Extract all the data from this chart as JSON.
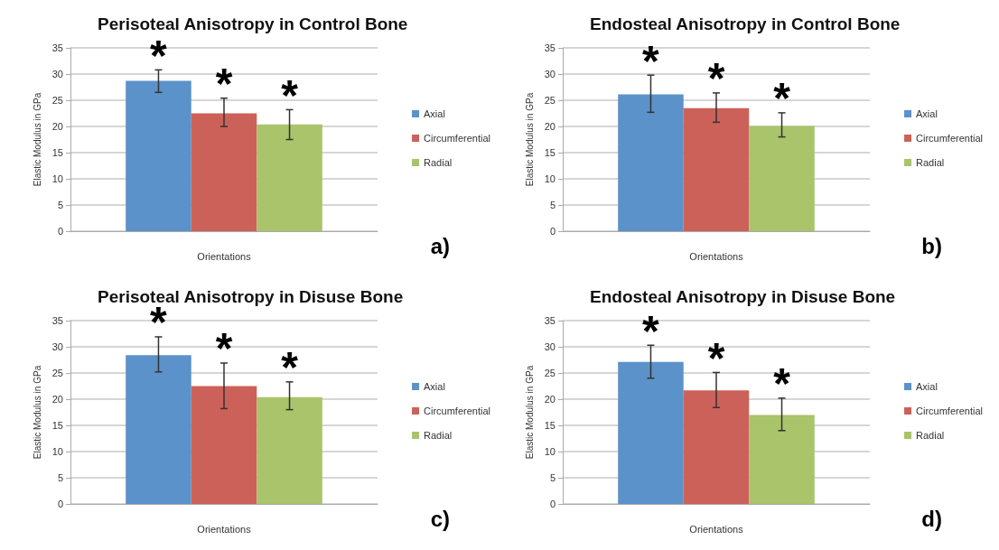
{
  "chart_data": [
    {
      "type": "bar",
      "title": "Perisoteal Anisotropy in Control Bone",
      "xlabel": "Orientations",
      "ylabel": "Elastic Modulus in GPa",
      "categories": [
        null
      ],
      "series": [
        {
          "name": "Axial",
          "color": "#5b92c9",
          "values": [
            28.7
          ],
          "errors": [
            [
              26.5,
              30.8
            ]
          ],
          "value_labels": [
            "*"
          ]
        },
        {
          "name": "Circumferential",
          "color": "#cc6159",
          "values": [
            22.5
          ],
          "errors": [
            [
              20,
              25.4
            ]
          ],
          "value_labels": [
            "*"
          ]
        },
        {
          "name": "Radial",
          "color": "#a9c46a",
          "values": [
            20.4
          ],
          "errors": [
            [
              17.5,
              23.2
            ]
          ],
          "value_labels": [
            "*"
          ]
        }
      ],
      "ylim": [
        0,
        35
      ],
      "yticks": [
        0,
        5,
        10,
        15,
        20,
        25,
        30,
        35
      ],
      "grid": "y",
      "legend": "right",
      "annotations": [
        "a)"
      ]
    },
    {
      "type": "bar",
      "title": "Endosteal Anisotropy in Control Bone",
      "xlabel": "Orientations",
      "ylabel": "Elastic Modulus in GPa",
      "categories": [
        null
      ],
      "series": [
        {
          "name": "Axial",
          "color": "#5b92c9",
          "values": [
            26.1
          ],
          "errors": [
            [
              22.7,
              29.8
            ]
          ],
          "value_labels": [
            "*"
          ]
        },
        {
          "name": "Circumferential",
          "color": "#cc6159",
          "values": [
            23.5
          ],
          "errors": [
            [
              20.8,
              26.4
            ]
          ],
          "value_labels": [
            "*"
          ]
        },
        {
          "name": "Radial",
          "color": "#a9c46a",
          "values": [
            20.1
          ],
          "errors": [
            [
              18,
              22.6
            ]
          ],
          "value_labels": [
            "*"
          ]
        }
      ],
      "ylim": [
        0,
        35
      ],
      "yticks": [
        0,
        5,
        10,
        15,
        20,
        25,
        30,
        35
      ],
      "grid": "y",
      "legend": "right",
      "annotations": [
        "b)"
      ]
    },
    {
      "type": "bar",
      "title": "Perisoteal Anisotropy in Disuse Bone",
      "xlabel": "Orientations",
      "ylabel": "Elastic Modulus in GPa",
      "categories": [
        null
      ],
      "series": [
        {
          "name": "Axial",
          "color": "#5b92c9",
          "values": [
            28.4
          ],
          "errors": [
            [
              25.2,
              31.9
            ]
          ],
          "value_labels": [
            "*"
          ]
        },
        {
          "name": "Circumferential",
          "color": "#cc6159",
          "values": [
            22.5
          ],
          "errors": [
            [
              18.2,
              26.9
            ]
          ],
          "value_labels": [
            "*"
          ]
        },
        {
          "name": "Radial",
          "color": "#a9c46a",
          "values": [
            20.4
          ],
          "errors": [
            [
              18,
              23.3
            ]
          ],
          "value_labels": [
            "*"
          ]
        }
      ],
      "ylim": [
        0,
        35
      ],
      "yticks": [
        0,
        5,
        10,
        15,
        20,
        25,
        30,
        35
      ],
      "grid": "y",
      "legend": "right",
      "annotations": [
        "c)"
      ]
    },
    {
      "type": "bar",
      "title": "Endosteal Anisotropy in Disuse Bone",
      "xlabel": "Orientations",
      "ylabel": "Elastic Modulus in GPa",
      "categories": [
        null
      ],
      "series": [
        {
          "name": "Axial",
          "color": "#5b92c9",
          "values": [
            27.1
          ],
          "errors": [
            [
              24,
              30.3
            ]
          ],
          "value_labels": [
            "*"
          ]
        },
        {
          "name": "Circumferential",
          "color": "#cc6159",
          "values": [
            21.7
          ],
          "errors": [
            [
              18.4,
              25.1
            ]
          ],
          "value_labels": [
            "*"
          ]
        },
        {
          "name": "Radial",
          "color": "#a9c46a",
          "values": [
            17
          ],
          "errors": [
            [
              14,
              20.2
            ]
          ],
          "value_labels": [
            "*"
          ]
        }
      ],
      "ylim": [
        0,
        35
      ],
      "yticks": [
        0,
        5,
        10,
        15,
        20,
        25,
        30,
        35
      ],
      "grid": "y",
      "legend": "right",
      "annotations": [
        "d)"
      ]
    }
  ]
}
